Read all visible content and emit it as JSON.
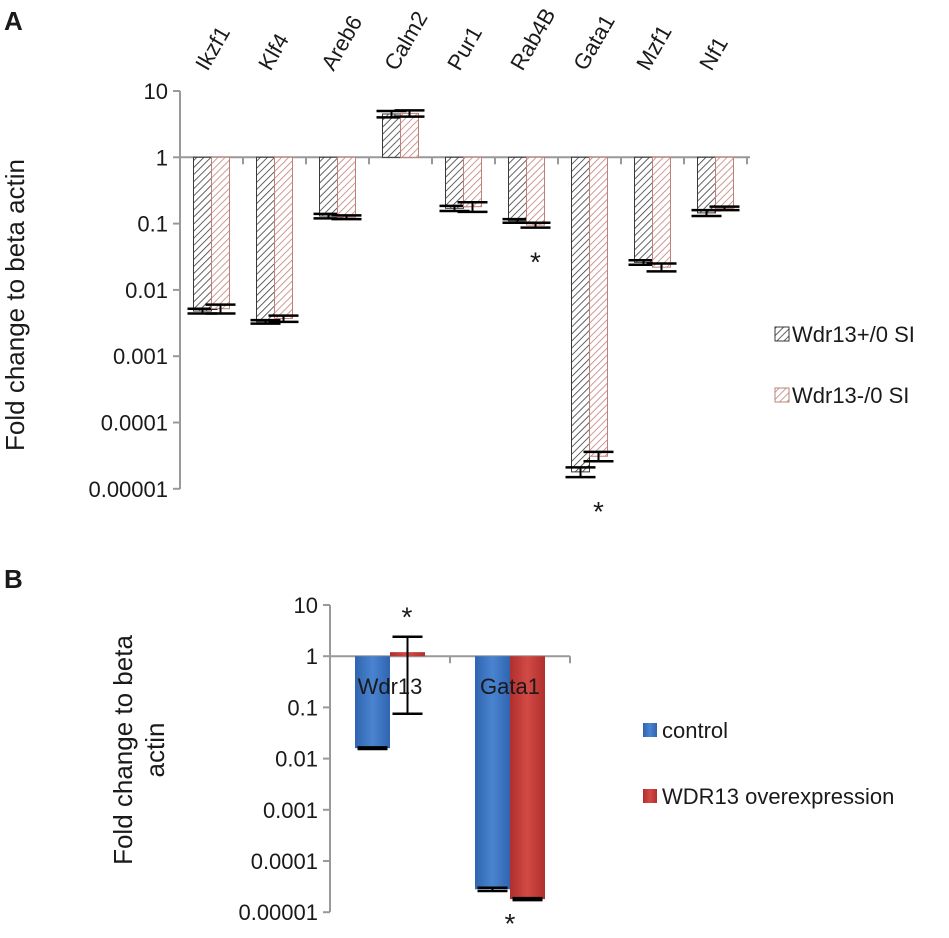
{
  "colors": {
    "axis": "#999999",
    "hatch_wt_stroke": "#3a3a3a",
    "hatch_ko_stroke": "#c0807a",
    "control": "#3f78c5",
    "overexpression": "#c8403d",
    "error_bar": "#000000"
  },
  "chart_data": [
    {
      "panel": "A",
      "type": "bar",
      "scale": "log10",
      "categories": [
        "Ikzf1",
        "Klf4",
        "Areb6",
        "Calm2",
        "Pur1",
        "Rab4B",
        "Gata1",
        "Mzf1",
        "Nf1"
      ],
      "series": [
        {
          "name": "Wdr13+/0 SI",
          "values": [
            0.0048,
            0.0033,
            0.13,
            4.5,
            0.17,
            0.11,
            1.8e-05,
            0.026,
            0.145
          ],
          "errors": [
            0.0004,
            0.0002,
            0.01,
            0.5,
            0.015,
            0.007,
            3e-06,
            0.002,
            0.015
          ]
        },
        {
          "name": "Wdr13-/0 SI",
          "values": [
            0.0052,
            0.0037,
            0.125,
            4.6,
            0.18,
            0.095,
            3.1e-05,
            0.022,
            0.17
          ],
          "errors": [
            0.0008,
            0.0004,
            0.008,
            0.5,
            0.03,
            0.008,
            5e-06,
            0.003,
            0.01
          ]
        }
      ],
      "ylabel": "Fold change to beta actin",
      "y_ticks": [
        "10",
        "1",
        "0.1",
        "0.01",
        "0.001",
        "0.0001",
        "0.00001"
      ],
      "ylim": [
        1e-05,
        10
      ],
      "baseline": 1,
      "significance": [
        {
          "category": "Rab4B",
          "label": "*"
        },
        {
          "category": "Gata1",
          "label": "*"
        }
      ],
      "legend_position": "right"
    },
    {
      "panel": "B",
      "type": "bar",
      "scale": "log10",
      "categories": [
        "Wdr13",
        "Gata1"
      ],
      "series": [
        {
          "name": "control",
          "values": [
            0.016,
            2.8e-05
          ],
          "errors": [
            0.0006,
            2e-06
          ]
        },
        {
          "name": "WDR13 overexpression",
          "values": [
            1.2,
            1.8e-05
          ],
          "error_range": [
            [
              0.075,
              2.4
            ],
            null
          ],
          "errors": [
            0,
            8e-07
          ]
        }
      ],
      "ylabel": "Fold change to beta actin",
      "y_ticks": [
        "10",
        "1",
        "0.1",
        "0.01",
        "0.001",
        "0.0001",
        "0.00001"
      ],
      "ylim": [
        1e-05,
        10
      ],
      "baseline": 1,
      "significance": [
        {
          "category": "Wdr13",
          "label": "*",
          "position": "above"
        },
        {
          "category": "Gata1",
          "label": "*",
          "position": "below"
        }
      ],
      "legend_position": "right"
    }
  ]
}
